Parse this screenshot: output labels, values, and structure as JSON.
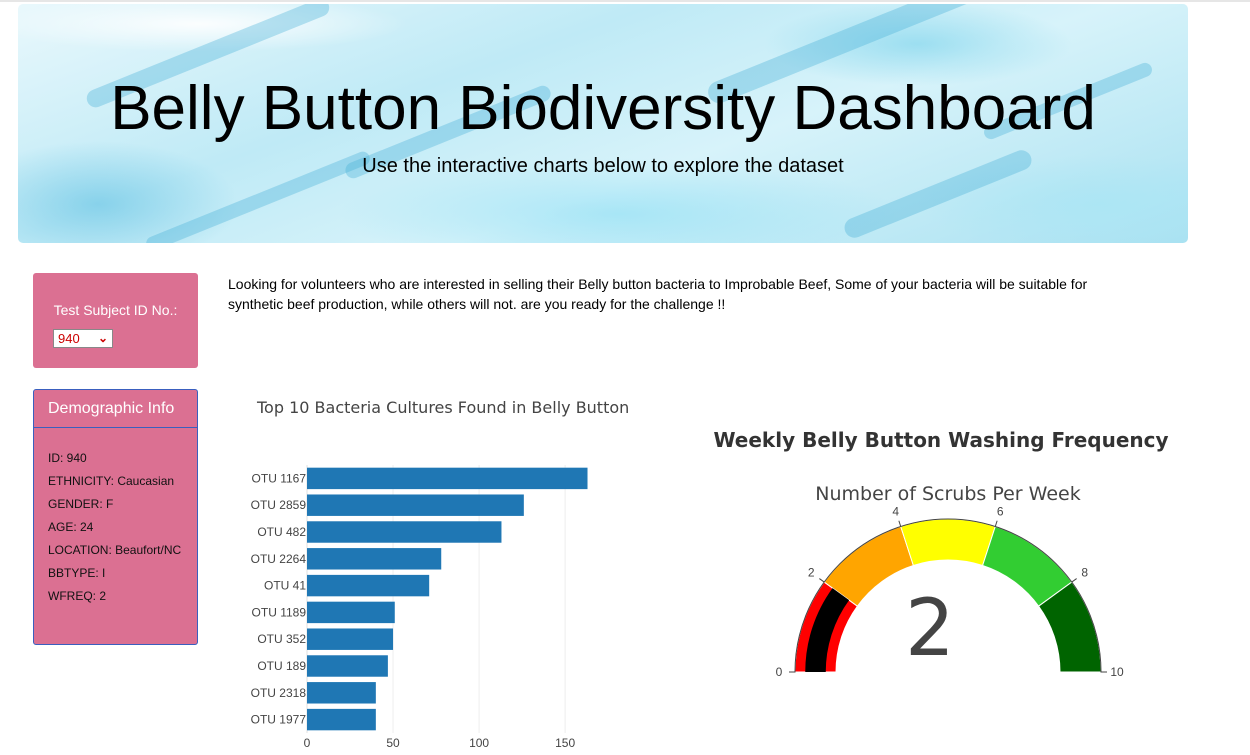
{
  "header": {
    "title": "Belly Button Biodiversity Dashboard",
    "subtitle": "Use the interactive charts below to explore the dataset"
  },
  "selector": {
    "label": "Test Subject ID No.:",
    "selected": "940"
  },
  "intro_text": "Looking for volunteers who are interested in selling their Belly button bacteria to Improbable Beef, Some of your bacteria will be suitable for synthetic beef production, while others will not. are you ready for the challenge !!",
  "demographics": {
    "heading": "Demographic Info",
    "items": [
      "ID: 940",
      "ETHNICITY: Caucasian",
      "GENDER: F",
      "AGE: 24",
      "LOCATION: Beaufort/NC",
      "BBTYPE: I",
      "WFREQ: 2"
    ]
  },
  "colors": {
    "panel": "#db7092",
    "bar": "#1f77b4",
    "gauge_needle": "#000000"
  },
  "chart_data": [
    {
      "type": "bar",
      "orientation": "horizontal",
      "title": "Top 10 Bacteria Cultures Found in Belly Button",
      "categories": [
        "OTU 1167",
        "OTU 2859",
        "OTU 482",
        "OTU 2264",
        "OTU 41",
        "OTU 1189",
        "OTU 352",
        "OTU 189",
        "OTU 2318",
        "OTU 1977"
      ],
      "values": [
        163,
        126,
        113,
        78,
        71,
        51,
        50,
        47,
        40,
        40
      ],
      "xticks": [
        0,
        50,
        100,
        150
      ],
      "xlim": [
        0,
        172
      ],
      "grid": true
    },
    {
      "type": "gauge",
      "title": "Weekly Belly Button Washing Frequency",
      "subtitle": "Number of Scrubs Per Week",
      "value": 2,
      "range": [
        0,
        10
      ],
      "ticks": [
        0,
        2,
        4,
        6,
        8,
        10
      ],
      "steps": [
        {
          "range": [
            0,
            2
          ],
          "color": "#ff0000"
        },
        {
          "range": [
            2,
            4
          ],
          "color": "#ffa500"
        },
        {
          "range": [
            4,
            6
          ],
          "color": "#ffff00"
        },
        {
          "range": [
            6,
            8
          ],
          "color": "#32cd32"
        },
        {
          "range": [
            8,
            10
          ],
          "color": "#006400"
        }
      ]
    }
  ]
}
